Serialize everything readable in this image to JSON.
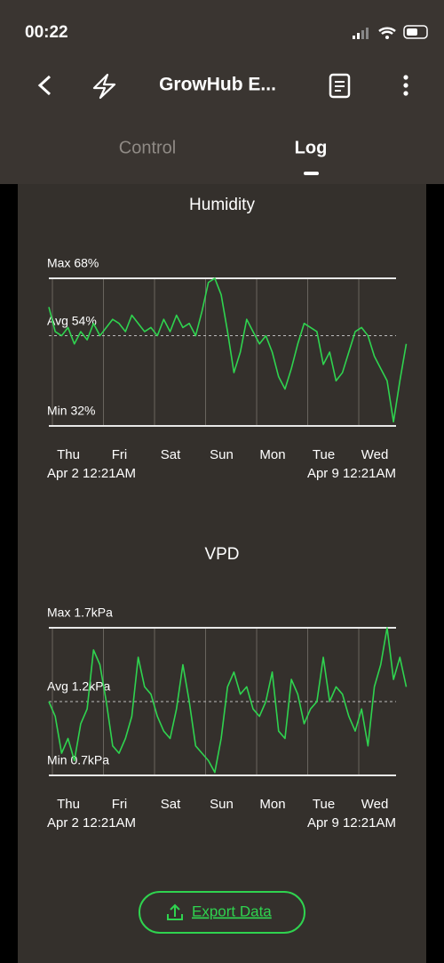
{
  "status_bar": {
    "time": "00:22"
  },
  "header": {
    "title": "GrowHub E...",
    "tabs": [
      "Control",
      "Log"
    ]
  },
  "chart_data": [
    {
      "type": "line",
      "title": "Humidity",
      "color": "#2fd34f",
      "x": [
        0,
        0.125,
        0.25,
        0.375,
        0.5,
        0.625,
        0.75,
        0.875,
        1,
        1.125,
        1.25,
        1.375,
        1.5,
        1.625,
        1.75,
        1.875,
        2,
        2.125,
        2.25,
        2.375,
        2.5,
        2.625,
        2.75,
        2.875,
        3,
        3.125,
        3.25,
        3.375,
        3.5,
        3.625,
        3.75,
        3.875,
        4,
        4.125,
        4.25,
        4.375,
        4.5,
        4.625,
        4.75,
        4.875,
        5,
        5.125,
        5.25,
        5.375,
        5.5,
        5.625,
        5.75,
        5.875,
        6,
        6.125,
        6.25,
        6.375,
        6.5,
        6.625,
        6.75,
        6.875,
        7
      ],
      "values": [
        61,
        55,
        54,
        56,
        52,
        55,
        53,
        57,
        54,
        56,
        58,
        57,
        55,
        59,
        57,
        55,
        56,
        54,
        58,
        55,
        59,
        56,
        57,
        54,
        60,
        67,
        68,
        64,
        55,
        45,
        50,
        58,
        55,
        52,
        54,
        50,
        44,
        41,
        46,
        52,
        57,
        56,
        55,
        47,
        50,
        43,
        45,
        50,
        55,
        56,
        54,
        49,
        46,
        43,
        33,
        43,
        52
      ],
      "xlim": [
        0,
        7
      ],
      "xticks": [
        {
          "value": 0.07,
          "label": "Thu"
        },
        {
          "value": 1.07,
          "label": "Fri"
        },
        {
          "value": 2.07,
          "label": "Sat"
        },
        {
          "value": 3.07,
          "label": "Sun"
        },
        {
          "value": 4.07,
          "label": "Mon"
        },
        {
          "value": 5.07,
          "label": "Tue"
        },
        {
          "value": 6.07,
          "label": "Wed"
        }
      ],
      "ylim": [
        32,
        68
      ],
      "yticks": [
        {
          "value": 68,
          "label": "Max 68%"
        },
        {
          "value": 54,
          "label": "Avg 54%"
        },
        {
          "value": 32,
          "label": "Min 32%"
        }
      ],
      "range_labels": [
        "Apr 2 12:21AM",
        "Apr 9 12:21AM"
      ]
    },
    {
      "type": "line",
      "title": "VPD",
      "color": "#2fd34f",
      "x": [
        0,
        0.125,
        0.25,
        0.375,
        0.5,
        0.625,
        0.75,
        0.875,
        1,
        1.125,
        1.25,
        1.375,
        1.5,
        1.625,
        1.75,
        1.875,
        2,
        2.125,
        2.25,
        2.375,
        2.5,
        2.625,
        2.75,
        2.875,
        3,
        3.125,
        3.25,
        3.375,
        3.5,
        3.625,
        3.75,
        3.875,
        4,
        4.125,
        4.25,
        4.375,
        4.5,
        4.625,
        4.75,
        4.875,
        5,
        5.125,
        5.25,
        5.375,
        5.5,
        5.625,
        5.75,
        5.875,
        6,
        6.125,
        6.25,
        6.375,
        6.5,
        6.625,
        6.75,
        6.875,
        7
      ],
      "values": [
        1.2,
        1.1,
        0.85,
        0.95,
        0.8,
        1.05,
        1.15,
        1.55,
        1.45,
        1.2,
        0.9,
        0.85,
        0.95,
        1.1,
        1.5,
        1.3,
        1.25,
        1.1,
        1.0,
        0.95,
        1.15,
        1.45,
        1.2,
        0.9,
        0.85,
        0.8,
        0.72,
        0.95,
        1.3,
        1.4,
        1.25,
        1.3,
        1.15,
        1.1,
        1.2,
        1.4,
        1.0,
        0.95,
        1.35,
        1.25,
        1.05,
        1.15,
        1.2,
        1.5,
        1.2,
        1.3,
        1.25,
        1.1,
        1.0,
        1.15,
        0.9,
        1.3,
        1.45,
        1.7,
        1.35,
        1.5,
        1.3
      ],
      "xlim": [
        0,
        7
      ],
      "xticks": [
        {
          "value": 0.07,
          "label": "Thu"
        },
        {
          "value": 1.07,
          "label": "Fri"
        },
        {
          "value": 2.07,
          "label": "Sat"
        },
        {
          "value": 3.07,
          "label": "Sun"
        },
        {
          "value": 4.07,
          "label": "Mon"
        },
        {
          "value": 5.07,
          "label": "Tue"
        },
        {
          "value": 6.07,
          "label": "Wed"
        }
      ],
      "ylim": [
        0.7,
        1.7
      ],
      "yticks": [
        {
          "value": 1.7,
          "label": "Max 1.7kPa"
        },
        {
          "value": 1.2,
          "label": "Avg 1.2kPa"
        },
        {
          "value": 0.7,
          "label": "Min 0.7kPa"
        }
      ],
      "range_labels": [
        "Apr 2 12:21AM",
        "Apr 9 12:21AM"
      ]
    }
  ],
  "export_button": "Export Data"
}
